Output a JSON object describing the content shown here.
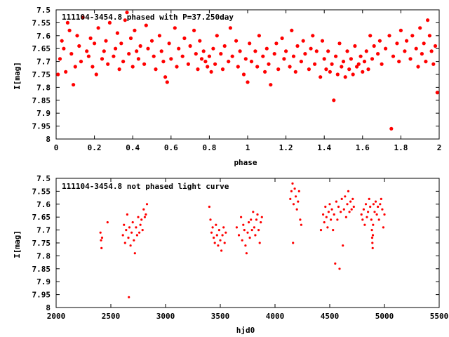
{
  "chart_data": [
    {
      "type": "scatter",
      "title": "111104-3454.8 phased with P=37.250day",
      "xlabel": "phase",
      "ylabel": "I[mag]",
      "xlim": [
        0,
        2
      ],
      "ylim": [
        7.5,
        8
      ],
      "y_inverted": true,
      "x_ticks": [
        0,
        0.2,
        0.4,
        0.6,
        0.8,
        1,
        1.2,
        1.4,
        1.6,
        1.8,
        2
      ],
      "x_tick_labels": [
        "0",
        "0.2",
        "0.4",
        "0.6",
        "0.8",
        "1",
        "1.2",
        "1.4",
        "1.6",
        "1.8",
        "2"
      ],
      "y_ticks": [
        7.5,
        7.55,
        7.6,
        7.65,
        7.7,
        7.75,
        7.8,
        7.85,
        7.9,
        7.95,
        8
      ],
      "y_tick_labels": [
        "7.5",
        "7.55",
        "7.6",
        "7.65",
        "7.7",
        "7.75",
        "7.8",
        "7.85",
        "7.9",
        "7.95",
        "8"
      ],
      "grid": false,
      "marker_color": "#ff0000",
      "points": [
        [
          0.01,
          7.75
        ],
        [
          0.02,
          7.69
        ],
        [
          0.03,
          7.62
        ],
        [
          0.04,
          7.65
        ],
        [
          0.05,
          7.74
        ],
        [
          0.06,
          7.55
        ],
        [
          0.07,
          7.58
        ],
        [
          0.08,
          7.67
        ],
        [
          0.09,
          7.79
        ],
        [
          0.1,
          7.72
        ],
        [
          0.11,
          7.6
        ],
        [
          0.12,
          7.64
        ],
        [
          0.13,
          7.7
        ],
        [
          0.14,
          7.53
        ],
        [
          0.16,
          7.66
        ],
        [
          0.17,
          7.68
        ],
        [
          0.18,
          7.61
        ],
        [
          0.19,
          7.72
        ],
        [
          0.2,
          7.63
        ],
        [
          0.21,
          7.75
        ],
        [
          0.22,
          7.57
        ],
        [
          0.24,
          7.69
        ],
        [
          0.25,
          7.66
        ],
        [
          0.26,
          7.62
        ],
        [
          0.27,
          7.71
        ],
        [
          0.28,
          7.55
        ],
        [
          0.3,
          7.68
        ],
        [
          0.31,
          7.65
        ],
        [
          0.32,
          7.59
        ],
        [
          0.33,
          7.73
        ],
        [
          0.34,
          7.63
        ],
        [
          0.35,
          7.7
        ],
        [
          0.36,
          7.54
        ],
        [
          0.37,
          7.51
        ],
        [
          0.38,
          7.67
        ],
        [
          0.39,
          7.61
        ],
        [
          0.4,
          7.72
        ],
        [
          0.41,
          7.58
        ],
        [
          0.42,
          7.66
        ],
        [
          0.43,
          7.69
        ],
        [
          0.44,
          7.64
        ],
        [
          0.46,
          7.71
        ],
        [
          0.47,
          7.56
        ],
        [
          0.48,
          7.65
        ],
        [
          0.5,
          7.62
        ],
        [
          0.51,
          7.68
        ],
        [
          0.52,
          7.73
        ],
        [
          0.54,
          7.6
        ],
        [
          0.55,
          7.66
        ],
        [
          0.56,
          7.7
        ],
        [
          0.57,
          7.76
        ],
        [
          0.58,
          7.78
        ],
        [
          0.59,
          7.63
        ],
        [
          0.6,
          7.69
        ],
        [
          0.62,
          7.57
        ],
        [
          0.63,
          7.72
        ],
        [
          0.64,
          7.65
        ],
        [
          0.66,
          7.68
        ],
        [
          0.67,
          7.61
        ],
        [
          0.69,
          7.71
        ],
        [
          0.7,
          7.64
        ],
        [
          0.72,
          7.58
        ],
        [
          0.73,
          7.67
        ],
        [
          0.74,
          7.73
        ],
        [
          0.75,
          7.62
        ],
        [
          0.76,
          7.69
        ],
        [
          0.77,
          7.66
        ],
        [
          0.78,
          7.7
        ],
        [
          0.79,
          7.72
        ],
        [
          0.8,
          7.68
        ],
        [
          0.81,
          7.74
        ],
        [
          0.82,
          7.65
        ],
        [
          0.83,
          7.71
        ],
        [
          0.84,
          7.6
        ],
        [
          0.86,
          7.67
        ],
        [
          0.87,
          7.73
        ],
        [
          0.88,
          7.64
        ],
        [
          0.9,
          7.7
        ],
        [
          0.91,
          7.57
        ],
        [
          0.92,
          7.68
        ],
        [
          0.94,
          7.62
        ],
        [
          0.95,
          7.72
        ],
        [
          0.96,
          7.66
        ],
        [
          0.98,
          7.75
        ],
        [
          0.99,
          7.69
        ],
        [
          1.0,
          7.78
        ],
        [
          1.01,
          7.63
        ],
        [
          1.02,
          7.7
        ],
        [
          1.04,
          7.66
        ],
        [
          1.05,
          7.72
        ],
        [
          1.06,
          7.6
        ],
        [
          1.08,
          7.68
        ],
        [
          1.09,
          7.74
        ],
        [
          1.1,
          7.65
        ],
        [
          1.11,
          7.71
        ],
        [
          1.12,
          7.79
        ],
        [
          1.14,
          7.67
        ],
        [
          1.15,
          7.63
        ],
        [
          1.16,
          7.73
        ],
        [
          1.18,
          7.61
        ],
        [
          1.19,
          7.69
        ],
        [
          1.2,
          7.66
        ],
        [
          1.22,
          7.72
        ],
        [
          1.23,
          7.58
        ],
        [
          1.24,
          7.68
        ],
        [
          1.25,
          7.74
        ],
        [
          1.26,
          7.64
        ],
        [
          1.28,
          7.7
        ],
        [
          1.29,
          7.62
        ],
        [
          1.3,
          7.67
        ],
        [
          1.32,
          7.73
        ],
        [
          1.33,
          7.65
        ],
        [
          1.34,
          7.6
        ],
        [
          1.35,
          7.71
        ],
        [
          1.36,
          7.66
        ],
        [
          1.38,
          7.76
        ],
        [
          1.39,
          7.62
        ],
        [
          1.4,
          7.69
        ],
        [
          1.41,
          7.73
        ],
        [
          1.42,
          7.66
        ],
        [
          1.43,
          7.74
        ],
        [
          1.44,
          7.71
        ],
        [
          1.45,
          7.85
        ],
        [
          1.46,
          7.68
        ],
        [
          1.47,
          7.75
        ],
        [
          1.48,
          7.63
        ],
        [
          1.49,
          7.72
        ],
        [
          1.5,
          7.7
        ],
        [
          1.51,
          7.76
        ],
        [
          1.52,
          7.66
        ],
        [
          1.53,
          7.73
        ],
        [
          1.54,
          7.69
        ],
        [
          1.55,
          7.75
        ],
        [
          1.56,
          7.64
        ],
        [
          1.57,
          7.72
        ],
        [
          1.58,
          7.71
        ],
        [
          1.59,
          7.68
        ],
        [
          1.6,
          7.74
        ],
        [
          1.61,
          7.7
        ],
        [
          1.62,
          7.66
        ],
        [
          1.63,
          7.73
        ],
        [
          1.64,
          7.6
        ],
        [
          1.65,
          7.69
        ],
        [
          1.66,
          7.64
        ],
        [
          1.68,
          7.67
        ],
        [
          1.69,
          7.62
        ],
        [
          1.7,
          7.71
        ],
        [
          1.72,
          7.65
        ],
        [
          1.74,
          7.6
        ],
        [
          1.75,
          7.96
        ],
        [
          1.76,
          7.68
        ],
        [
          1.78,
          7.63
        ],
        [
          1.79,
          7.7
        ],
        [
          1.8,
          7.58
        ],
        [
          1.82,
          7.66
        ],
        [
          1.83,
          7.62
        ],
        [
          1.85,
          7.69
        ],
        [
          1.86,
          7.6
        ],
        [
          1.88,
          7.65
        ],
        [
          1.89,
          7.72
        ],
        [
          1.9,
          7.57
        ],
        [
          1.91,
          7.67
        ],
        [
          1.92,
          7.63
        ],
        [
          1.93,
          7.7
        ],
        [
          1.94,
          7.54
        ],
        [
          1.95,
          7.6
        ],
        [
          1.96,
          7.66
        ],
        [
          1.97,
          7.71
        ],
        [
          1.98,
          7.64
        ],
        [
          1.99,
          7.82
        ]
      ]
    },
    {
      "type": "scatter",
      "title": "111104-3454.8 not phased light curve",
      "xlabel": "hjd0",
      "ylabel": "I[mag]",
      "xlim": [
        2000,
        5500
      ],
      "ylim": [
        7.5,
        8
      ],
      "y_inverted": true,
      "x_ticks": [
        2000,
        2500,
        3000,
        3500,
        4000,
        4500,
        5000,
        5500
      ],
      "x_tick_labels": [
        "2000",
        "2500",
        "3000",
        "3500",
        "4000",
        "4500",
        "5000",
        "5500"
      ],
      "y_ticks": [
        7.5,
        7.55,
        7.6,
        7.65,
        7.7,
        7.75,
        7.8,
        7.85,
        7.9,
        7.95,
        8
      ],
      "y_tick_labels": [
        "7.5",
        "7.55",
        "7.6",
        "7.65",
        "7.7",
        "7.75",
        "7.8",
        "7.85",
        "7.9",
        "7.95",
        "8"
      ],
      "grid": false,
      "marker_color": "#ff0000",
      "points": [
        [
          2405,
          7.71
        ],
        [
          2410,
          7.74
        ],
        [
          2415,
          7.77
        ],
        [
          2420,
          7.73
        ],
        [
          2470,
          7.67
        ],
        [
          2610,
          7.72
        ],
        [
          2620,
          7.68
        ],
        [
          2630,
          7.75
        ],
        [
          2640,
          7.7
        ],
        [
          2650,
          7.64
        ],
        [
          2660,
          7.73
        ],
        [
          2665,
          7.96
        ],
        [
          2670,
          7.69
        ],
        [
          2680,
          7.76
        ],
        [
          2690,
          7.71
        ],
        [
          2700,
          7.67
        ],
        [
          2710,
          7.74
        ],
        [
          2720,
          7.79
        ],
        [
          2730,
          7.69
        ],
        [
          2740,
          7.72
        ],
        [
          2750,
          7.65
        ],
        [
          2760,
          7.71
        ],
        [
          2770,
          7.68
        ],
        [
          2780,
          7.66
        ],
        [
          2790,
          7.7
        ],
        [
          2800,
          7.62
        ],
        [
          2810,
          7.65
        ],
        [
          2820,
          7.64
        ],
        [
          2830,
          7.6
        ],
        [
          3400,
          7.61
        ],
        [
          3410,
          7.66
        ],
        [
          3420,
          7.71
        ],
        [
          3430,
          7.69
        ],
        [
          3440,
          7.73
        ],
        [
          3450,
          7.75
        ],
        [
          3460,
          7.68
        ],
        [
          3470,
          7.72
        ],
        [
          3480,
          7.76
        ],
        [
          3490,
          7.7
        ],
        [
          3500,
          7.74
        ],
        [
          3510,
          7.78
        ],
        [
          3520,
          7.72
        ],
        [
          3530,
          7.69
        ],
        [
          3540,
          7.75
        ],
        [
          3550,
          7.71
        ],
        [
          3650,
          7.69
        ],
        [
          3670,
          7.72
        ],
        [
          3690,
          7.65
        ],
        [
          3700,
          7.74
        ],
        [
          3710,
          7.68
        ],
        [
          3720,
          7.7
        ],
        [
          3730,
          7.76
        ],
        [
          3740,
          7.79
        ],
        [
          3750,
          7.71
        ],
        [
          3760,
          7.67
        ],
        [
          3770,
          7.73
        ],
        [
          3780,
          7.66
        ],
        [
          3790,
          7.7
        ],
        [
          3800,
          7.63
        ],
        [
          3810,
          7.69
        ],
        [
          3820,
          7.72
        ],
        [
          3830,
          7.66
        ],
        [
          3840,
          7.64
        ],
        [
          3850,
          7.7
        ],
        [
          3860,
          7.75
        ],
        [
          3870,
          7.67
        ],
        [
          3880,
          7.65
        ],
        [
          4140,
          7.58
        ],
        [
          4150,
          7.55
        ],
        [
          4160,
          7.52
        ],
        [
          4165,
          7.75
        ],
        [
          4170,
          7.6
        ],
        [
          4180,
          7.54
        ],
        [
          4190,
          7.57
        ],
        [
          4200,
          7.62
        ],
        [
          4210,
          7.59
        ],
        [
          4220,
          7.55
        ],
        [
          4230,
          7.66
        ],
        [
          4240,
          7.68
        ],
        [
          4420,
          7.7
        ],
        [
          4440,
          7.64
        ],
        [
          4450,
          7.67
        ],
        [
          4460,
          7.61
        ],
        [
          4470,
          7.65
        ],
        [
          4480,
          7.69
        ],
        [
          4490,
          7.63
        ],
        [
          4500,
          7.6
        ],
        [
          4510,
          7.66
        ],
        [
          4520,
          7.62
        ],
        [
          4530,
          7.7
        ],
        [
          4540,
          7.64
        ],
        [
          4550,
          7.83
        ],
        [
          4560,
          7.59
        ],
        [
          4570,
          7.66
        ],
        [
          4580,
          7.61
        ],
        [
          4590,
          7.85
        ],
        [
          4600,
          7.63
        ],
        [
          4610,
          7.58
        ],
        [
          4620,
          7.76
        ],
        [
          4630,
          7.62
        ],
        [
          4640,
          7.57
        ],
        [
          4650,
          7.65
        ],
        [
          4660,
          7.6
        ],
        [
          4670,
          7.55
        ],
        [
          4680,
          7.63
        ],
        [
          4690,
          7.59
        ],
        [
          4700,
          7.62
        ],
        [
          4710,
          7.58
        ],
        [
          4720,
          7.61
        ],
        [
          4790,
          7.64
        ],
        [
          4800,
          7.66
        ],
        [
          4810,
          7.62
        ],
        [
          4820,
          7.68
        ],
        [
          4830,
          7.6
        ],
        [
          4840,
          7.65
        ],
        [
          4850,
          7.63
        ],
        [
          4860,
          7.58
        ],
        [
          4870,
          7.61
        ],
        [
          4880,
          7.66
        ],
        [
          4885,
          7.7
        ],
        [
          4888,
          7.73
        ],
        [
          4890,
          7.75
        ],
        [
          4892,
          7.77
        ],
        [
          4894,
          7.72
        ],
        [
          4896,
          7.68
        ],
        [
          4900,
          7.6
        ],
        [
          4910,
          7.63
        ],
        [
          4920,
          7.59
        ],
        [
          4930,
          7.64
        ],
        [
          4940,
          7.61
        ],
        [
          4950,
          7.66
        ],
        [
          4960,
          7.6
        ],
        [
          4970,
          7.58
        ],
        [
          4980,
          7.62
        ],
        [
          4990,
          7.69
        ],
        [
          5000,
          7.64
        ]
      ]
    }
  ]
}
